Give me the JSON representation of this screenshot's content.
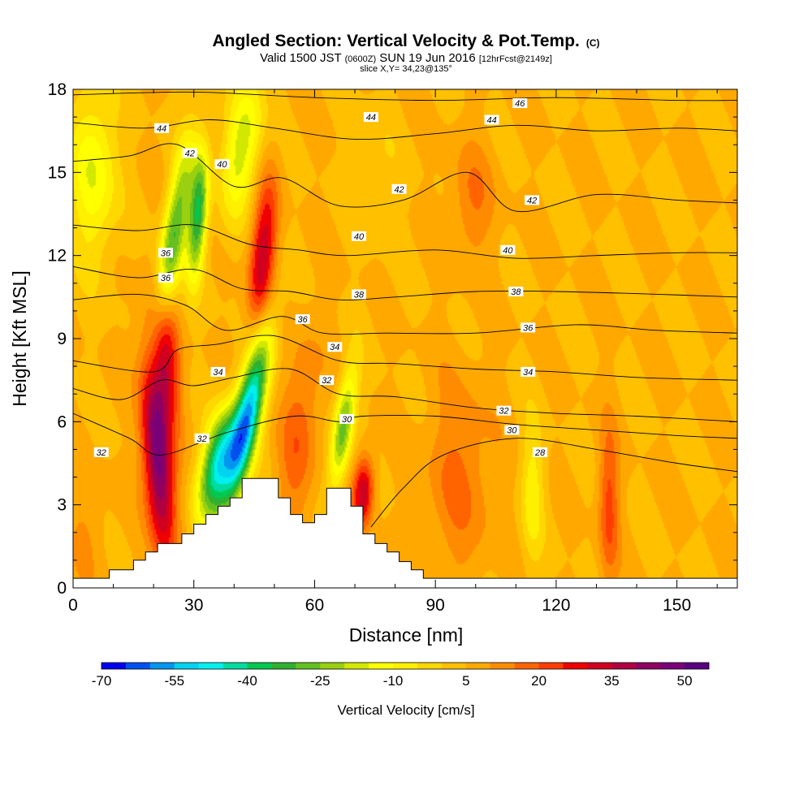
{
  "chart_data": {
    "type": "heatmap",
    "title": "Angled Section: Vertical Velocity & Pot.Temp.",
    "title_unit": "(C)",
    "subtitle_parts": [
      "Valid 1500 JST ",
      "(0600Z)",
      " SUN 19 Jun 2016 ",
      "[12hrFcst@2149z]"
    ],
    "subtitle2": "slice X,Y= 34,23@135°",
    "xlabel": "Distance [nm]",
    "ylabel": "Height [Kft MSL]",
    "xlim": [
      0,
      165
    ],
    "ylim": [
      0,
      18
    ],
    "x_ticks": [
      "0",
      "30",
      "60",
      "90",
      "120",
      "150"
    ],
    "x_tick_values": [
      0,
      30,
      60,
      90,
      120,
      150
    ],
    "y_ticks": [
      "0",
      "3",
      "6",
      "9",
      "12",
      "15",
      "18"
    ],
    "y_tick_values": [
      0,
      3,
      6,
      9,
      12,
      15,
      18
    ],
    "colorbar": {
      "label": "Vertical Velocity [cm/s]",
      "min": -70,
      "step": 5,
      "tick_labels": [
        "-70",
        "-55",
        "-40",
        "-25",
        "-10",
        "5",
        "20",
        "35",
        "50"
      ],
      "colors": [
        "#0000f0",
        "#0050f0",
        "#0096f0",
        "#00d2f0",
        "#00f0f0",
        "#00dca0",
        "#00c850",
        "#30b030",
        "#64c020",
        "#9ad010",
        "#d2e800",
        "#ffff00",
        "#fff000",
        "#ffd800",
        "#ffc000",
        "#ffa800",
        "#ff8c00",
        "#ff6400",
        "#ff3c00",
        "#f00000",
        "#d00020",
        "#b00040",
        "#900060",
        "#7a0078",
        "#5a0080"
      ]
    },
    "background_value": 5,
    "velocity_features": [
      {
        "x": 21,
        "y": 4.8,
        "sx": 2.6,
        "sy": 2.6,
        "value": 50,
        "tilt": -0.16
      },
      {
        "x": 23,
        "y": 8.5,
        "sx": 2.3,
        "sy": 1.6,
        "value": 30,
        "tilt": -0.16
      },
      {
        "x": 43,
        "y": 6.0,
        "sx": 2.4,
        "sy": 2.2,
        "value": -55,
        "tilt": 0.45
      },
      {
        "x": 36,
        "y": 4.5,
        "sx": 3.0,
        "sy": 1.4,
        "value": -45,
        "tilt": 0.45
      },
      {
        "x": 47,
        "y": 12.0,
        "sx": 2.2,
        "sy": 1.9,
        "value": 35,
        "tilt": 0.18
      },
      {
        "x": 25,
        "y": 12.8,
        "sx": 2.2,
        "sy": 2.3,
        "value": -30,
        "tilt": 0.35
      },
      {
        "x": 31,
        "y": 13.5,
        "sx": 1.6,
        "sy": 1.6,
        "value": -35,
        "tilt": 0.15
      },
      {
        "x": 5,
        "y": 15,
        "sx": 4,
        "sy": 2.2,
        "value": -15,
        "tilt": 0
      },
      {
        "x": 42,
        "y": 16.0,
        "sx": 3.2,
        "sy": 1.8,
        "value": -18,
        "tilt": 0.3
      },
      {
        "x": 67,
        "y": 5.8,
        "sx": 1.8,
        "sy": 1.5,
        "value": -28,
        "tilt": 0.3
      },
      {
        "x": 72,
        "y": 3.5,
        "sx": 1.8,
        "sy": 0.9,
        "value": 35,
        "tilt": 0.1
      },
      {
        "x": 56,
        "y": 5.5,
        "sx": 3.5,
        "sy": 2.5,
        "value": 18,
        "tilt": 0.2
      },
      {
        "x": 96,
        "y": 4,
        "sx": 6,
        "sy": 2.5,
        "value": 16,
        "tilt": 0
      },
      {
        "x": 99,
        "y": 14,
        "sx": 4,
        "sy": 1.5,
        "value": 15,
        "tilt": 0
      },
      {
        "x": 114,
        "y": 3.5,
        "sx": 2,
        "sy": 1.8,
        "value": -8,
        "tilt": 0
      },
      {
        "x": 133,
        "y": 3,
        "sx": 1.8,
        "sy": 2,
        "value": 22,
        "tilt": 0
      },
      {
        "x": 3,
        "y": 2,
        "sx": 4,
        "sy": 1.5,
        "value": 10,
        "tilt": 0
      },
      {
        "x": 75,
        "y": 15,
        "sx": 4,
        "sy": 1.5,
        "value": 0,
        "tilt": 0
      }
    ],
    "terrain": [
      [
        0,
        0.35
      ],
      [
        9,
        0.35
      ],
      [
        9,
        0.65
      ],
      [
        15,
        0.65
      ],
      [
        15,
        1.0
      ],
      [
        18,
        1.0
      ],
      [
        18,
        1.3
      ],
      [
        21,
        1.3
      ],
      [
        21,
        1.6
      ],
      [
        27,
        1.6
      ],
      [
        27,
        1.95
      ],
      [
        30,
        1.95
      ],
      [
        30,
        2.3
      ],
      [
        33,
        2.3
      ],
      [
        33,
        2.65
      ],
      [
        36,
        2.65
      ],
      [
        36,
        2.95
      ],
      [
        39,
        2.95
      ],
      [
        39,
        3.25
      ],
      [
        42,
        3.25
      ],
      [
        42,
        3.95
      ],
      [
        51,
        3.95
      ],
      [
        51,
        3.25
      ],
      [
        54,
        3.25
      ],
      [
        54,
        2.65
      ],
      [
        57,
        2.65
      ],
      [
        57,
        2.35
      ],
      [
        60,
        2.35
      ],
      [
        60,
        2.65
      ],
      [
        63,
        2.65
      ],
      [
        63,
        3.6
      ],
      [
        69,
        3.6
      ],
      [
        69,
        2.95
      ],
      [
        72,
        2.95
      ],
      [
        72,
        1.95
      ],
      [
        75,
        1.95
      ],
      [
        75,
        1.6
      ],
      [
        78,
        1.6
      ],
      [
        78,
        1.3
      ],
      [
        81,
        1.3
      ],
      [
        81,
        0.95
      ],
      [
        84,
        0.95
      ],
      [
        84,
        0.65
      ],
      [
        87,
        0.65
      ],
      [
        87,
        0.35
      ],
      [
        165,
        0.35
      ]
    ],
    "theta_lines": [
      {
        "level": 28,
        "points": [
          [
            74,
            2.2
          ],
          [
            82,
            3.6
          ],
          [
            92,
            4.8
          ],
          [
            110,
            5.4
          ],
          [
            130,
            5.0
          ],
          [
            150,
            4.5
          ],
          [
            165,
            4.2
          ]
        ]
      },
      {
        "level": 30,
        "points": [
          [
            0,
            6.3
          ],
          [
            14,
            5.4
          ],
          [
            22,
            4.8
          ],
          [
            38,
            5.6
          ],
          [
            55,
            6.2
          ],
          [
            66,
            6.0
          ],
          [
            72,
            6.2
          ],
          [
            90,
            6.2
          ],
          [
            110,
            5.9
          ],
          [
            130,
            5.7
          ],
          [
            150,
            5.5
          ],
          [
            165,
            5.4
          ]
        ]
      },
      {
        "level": 32,
        "points": [
          [
            0,
            7.2
          ],
          [
            12,
            6.8
          ],
          [
            22,
            7.5
          ],
          [
            30,
            7.3
          ],
          [
            40,
            7.6
          ],
          [
            54,
            7.9
          ],
          [
            66,
            7.0
          ],
          [
            80,
            6.9
          ],
          [
            100,
            6.5
          ],
          [
            120,
            6.3
          ],
          [
            140,
            6.2
          ],
          [
            165,
            6.0
          ]
        ]
      },
      {
        "level": 34,
        "points": [
          [
            0,
            8.2
          ],
          [
            20,
            7.8
          ],
          [
            26,
            8.6
          ],
          [
            36,
            8.8
          ],
          [
            50,
            9.1
          ],
          [
            66,
            8.2
          ],
          [
            80,
            8.1
          ],
          [
            100,
            7.9
          ],
          [
            120,
            7.8
          ],
          [
            140,
            7.6
          ],
          [
            165,
            7.5
          ]
        ]
      },
      {
        "level": 36,
        "points": [
          [
            0,
            10.4
          ],
          [
            16,
            10.6
          ],
          [
            28,
            10.2
          ],
          [
            38,
            9.3
          ],
          [
            52,
            9.8
          ],
          [
            62,
            9.2
          ],
          [
            78,
            9.2
          ],
          [
            100,
            9.2
          ],
          [
            125,
            9.5
          ],
          [
            145,
            9.3
          ],
          [
            165,
            9.2
          ]
        ]
      },
      {
        "level": 38,
        "points": [
          [
            0,
            11.6
          ],
          [
            16,
            11.2
          ],
          [
            30,
            11.5
          ],
          [
            42,
            10.8
          ],
          [
            54,
            10.7
          ],
          [
            66,
            10.4
          ],
          [
            80,
            10.5
          ],
          [
            100,
            10.7
          ],
          [
            120,
            10.7
          ],
          [
            145,
            10.6
          ],
          [
            165,
            10.5
          ]
        ]
      },
      {
        "level": 40,
        "points": [
          [
            0,
            13.1
          ],
          [
            16,
            12.9
          ],
          [
            30,
            13.1
          ],
          [
            44,
            12.4
          ],
          [
            56,
            12.2
          ],
          [
            68,
            12.0
          ],
          [
            90,
            12.2
          ],
          [
            110,
            11.9
          ],
          [
            130,
            12.0
          ],
          [
            150,
            12.1
          ],
          [
            165,
            12.1
          ]
        ]
      },
      {
        "level": 42,
        "points": [
          [
            0,
            15.4
          ],
          [
            14,
            15.6
          ],
          [
            26,
            16.0
          ],
          [
            40,
            14.5
          ],
          [
            52,
            14.8
          ],
          [
            66,
            13.8
          ],
          [
            82,
            14.0
          ],
          [
            98,
            15.0
          ],
          [
            110,
            13.6
          ],
          [
            130,
            14.2
          ],
          [
            150,
            14.0
          ],
          [
            165,
            13.9
          ]
        ]
      },
      {
        "level": 44,
        "points": [
          [
            0,
            16.8
          ],
          [
            18,
            16.6
          ],
          [
            34,
            16.9
          ],
          [
            50,
            16.6
          ],
          [
            70,
            16.2
          ],
          [
            90,
            16.4
          ],
          [
            110,
            16.7
          ],
          [
            130,
            16.5
          ],
          [
            150,
            16.6
          ],
          [
            165,
            16.5
          ]
        ]
      },
      {
        "level": 46,
        "points": [
          [
            0,
            17.8
          ],
          [
            30,
            17.9
          ],
          [
            60,
            17.7
          ],
          [
            90,
            17.6
          ],
          [
            120,
            17.7
          ],
          [
            150,
            17.6
          ],
          [
            165,
            17.6
          ]
        ]
      }
    ],
    "contour_labels": [
      {
        "text": "46",
        "x": 111,
        "y": 17.5
      },
      {
        "text": "44",
        "x": 74,
        "y": 17.0
      },
      {
        "text": "44",
        "x": 104,
        "y": 16.9
      },
      {
        "text": "44",
        "x": 22,
        "y": 16.6
      },
      {
        "text": "42",
        "x": 29,
        "y": 15.7
      },
      {
        "text": "40",
        "x": 37,
        "y": 15.3
      },
      {
        "text": "42",
        "x": 81,
        "y": 14.4
      },
      {
        "text": "42",
        "x": 114,
        "y": 14.0
      },
      {
        "text": "40",
        "x": 71,
        "y": 12.7
      },
      {
        "text": "40",
        "x": 108,
        "y": 12.2
      },
      {
        "text": "36",
        "x": 23,
        "y": 12.1
      },
      {
        "text": "36",
        "x": 23,
        "y": 11.2
      },
      {
        "text": "38",
        "x": 71,
        "y": 10.6
      },
      {
        "text": "38",
        "x": 110,
        "y": 10.7
      },
      {
        "text": "36",
        "x": 57,
        "y": 9.7
      },
      {
        "text": "36",
        "x": 113,
        "y": 9.4
      },
      {
        "text": "34",
        "x": 65,
        "y": 8.7
      },
      {
        "text": "34",
        "x": 36,
        "y": 7.8
      },
      {
        "text": "34",
        "x": 113,
        "y": 7.8
      },
      {
        "text": "32",
        "x": 63,
        "y": 7.5
      },
      {
        "text": "32",
        "x": 107,
        "y": 6.4
      },
      {
        "text": "30",
        "x": 68,
        "y": 6.1
      },
      {
        "text": "30",
        "x": 109,
        "y": 5.7
      },
      {
        "text": "32",
        "x": 7,
        "y": 4.9
      },
      {
        "text": "32",
        "x": 32,
        "y": 5.4
      },
      {
        "text": "28",
        "x": 116,
        "y": 4.9
      }
    ]
  }
}
